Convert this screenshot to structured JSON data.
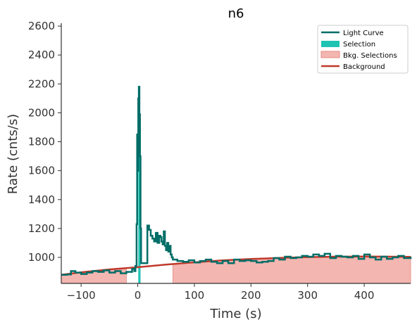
{
  "chart_data": {
    "type": "line",
    "title": "n6",
    "xlabel": "Time (s)",
    "ylabel": "Rate (cnts/s)",
    "xlim": [
      -135,
      482
    ],
    "ylim": [
      820,
      2620
    ],
    "x_ticks": [
      -100,
      0,
      100,
      200,
      300,
      400
    ],
    "y_ticks": [
      1000,
      1200,
      1400,
      1600,
      1800,
      2000,
      2200,
      2400,
      2600
    ],
    "legend_position": "top-right",
    "legend": [
      "Light Curve",
      "Selection",
      "Bkg. Selections",
      "Background"
    ],
    "colors": {
      "light_curve": "#006d67",
      "selection": "#1fc3b3",
      "bkg_selection_fill": "#f4b6b0",
      "bkg_selection_edge": "#e88b83",
      "background": "#c0392b"
    },
    "selection": [
      1,
      5
    ],
    "bkg_selections": [
      [
        -135,
        -20
      ],
      [
        62,
        482
      ]
    ],
    "background_curve": {
      "x": [
        -135,
        -100,
        -50,
        0,
        50,
        100,
        150,
        200,
        250,
        300,
        350,
        400,
        450,
        482
      ],
      "y": [
        880,
        897,
        917,
        932,
        950,
        966,
        979,
        989,
        996,
        1002,
        1005,
        1006,
        1005,
        1004
      ]
    },
    "light_curve": {
      "x": [
        -135,
        -125,
        -118,
        -110,
        -100,
        -90,
        -80,
        -70,
        -60,
        -50,
        -40,
        -30,
        -20,
        -10,
        -6,
        -4,
        -2,
        -1,
        0,
        1,
        2,
        3,
        4,
        5,
        6,
        17,
        20,
        23,
        26,
        29,
        32,
        35,
        38,
        40,
        42,
        44,
        46,
        48,
        50,
        52,
        54,
        56,
        58,
        60,
        62,
        70,
        80,
        90,
        100,
        110,
        120,
        130,
        140,
        150,
        160,
        170,
        180,
        190,
        200,
        210,
        220,
        230,
        240,
        250,
        260,
        270,
        280,
        290,
        300,
        310,
        320,
        330,
        340,
        350,
        360,
        370,
        380,
        390,
        400,
        410,
        420,
        430,
        440,
        450,
        460,
        470,
        482
      ],
      "y": [
        880,
        882,
        905,
        895,
        885,
        895,
        905,
        900,
        910,
        895,
        905,
        890,
        900,
        920,
        905,
        940,
        1230,
        1850,
        1600,
        2100,
        2180,
        1990,
        1700,
        1200,
        960,
        1220,
        1190,
        1150,
        1130,
        1110,
        1170,
        1100,
        1150,
        1140,
        1110,
        1090,
        1180,
        1080,
        1050,
        1100,
        1040,
        1080,
        1020,
        1000,
        985,
        975,
        970,
        980,
        965,
        975,
        985,
        970,
        960,
        975,
        960,
        985,
        975,
        980,
        975,
        965,
        970,
        975,
        995,
        985,
        1005,
        995,
        1000,
        1010,
        1005,
        1020,
        1010,
        1025,
        995,
        1010,
        1005,
        1000,
        1010,
        990,
        1020,
        1000,
        985,
        1005,
        990,
        1000,
        1010,
        995,
        1005
      ]
    }
  }
}
